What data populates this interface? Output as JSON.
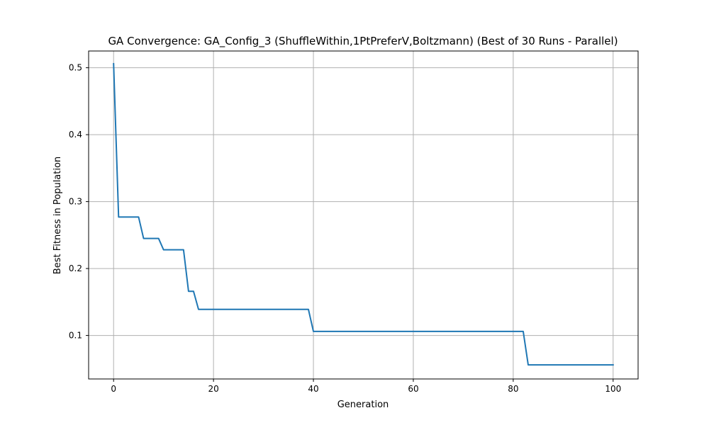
{
  "chart_data": {
    "type": "line",
    "title": "GA Convergence: GA_Config_3 (ShuffleWithin,1PtPreferV,Boltzmann) (Best of 30 Runs - Parallel)",
    "xlabel": "Generation",
    "ylabel": "Best Fitness in Population",
    "xlim": [
      -5,
      105
    ],
    "ylim": [
      0.035,
      0.525
    ],
    "xticks": [
      0,
      20,
      40,
      60,
      80,
      100
    ],
    "yticks": [
      0.1,
      0.2,
      0.3,
      0.4,
      0.5
    ],
    "grid": true,
    "color": "#1f77b4",
    "series": [
      {
        "x": [
          0,
          1,
          2,
          3,
          4,
          5,
          6,
          7,
          8,
          9,
          10,
          11,
          12,
          13,
          14,
          15,
          16,
          17,
          18,
          19,
          20,
          21,
          22,
          23,
          24,
          25,
          26,
          27,
          28,
          29,
          30,
          31,
          32,
          33,
          34,
          35,
          36,
          37,
          38,
          39,
          40,
          41,
          42,
          43,
          44,
          45,
          46,
          47,
          48,
          49,
          50,
          51,
          52,
          53,
          54,
          55,
          56,
          57,
          58,
          59,
          60,
          61,
          62,
          63,
          64,
          65,
          66,
          67,
          68,
          69,
          70,
          71,
          72,
          73,
          74,
          75,
          76,
          77,
          78,
          79,
          80,
          81,
          82,
          83,
          84,
          85,
          86,
          87,
          88,
          89,
          90,
          91,
          92,
          93,
          94,
          95,
          96,
          97,
          98,
          99,
          100
        ],
        "values": [
          0.506,
          0.277,
          0.277,
          0.277,
          0.277,
          0.277,
          0.245,
          0.245,
          0.245,
          0.245,
          0.228,
          0.228,
          0.228,
          0.228,
          0.228,
          0.166,
          0.166,
          0.139,
          0.139,
          0.139,
          0.139,
          0.139,
          0.139,
          0.139,
          0.139,
          0.139,
          0.139,
          0.139,
          0.139,
          0.139,
          0.139,
          0.139,
          0.139,
          0.139,
          0.139,
          0.139,
          0.139,
          0.139,
          0.139,
          0.139,
          0.106,
          0.106,
          0.106,
          0.106,
          0.106,
          0.106,
          0.106,
          0.106,
          0.106,
          0.106,
          0.106,
          0.106,
          0.106,
          0.106,
          0.106,
          0.106,
          0.106,
          0.106,
          0.106,
          0.106,
          0.106,
          0.106,
          0.106,
          0.106,
          0.106,
          0.106,
          0.106,
          0.106,
          0.106,
          0.106,
          0.106,
          0.106,
          0.106,
          0.106,
          0.106,
          0.106,
          0.106,
          0.106,
          0.106,
          0.106,
          0.106,
          0.106,
          0.106,
          0.056,
          0.056,
          0.056,
          0.056,
          0.056,
          0.056,
          0.056,
          0.056,
          0.056,
          0.056,
          0.056,
          0.056,
          0.056,
          0.056,
          0.056,
          0.056,
          0.056,
          0.056
        ]
      }
    ]
  }
}
